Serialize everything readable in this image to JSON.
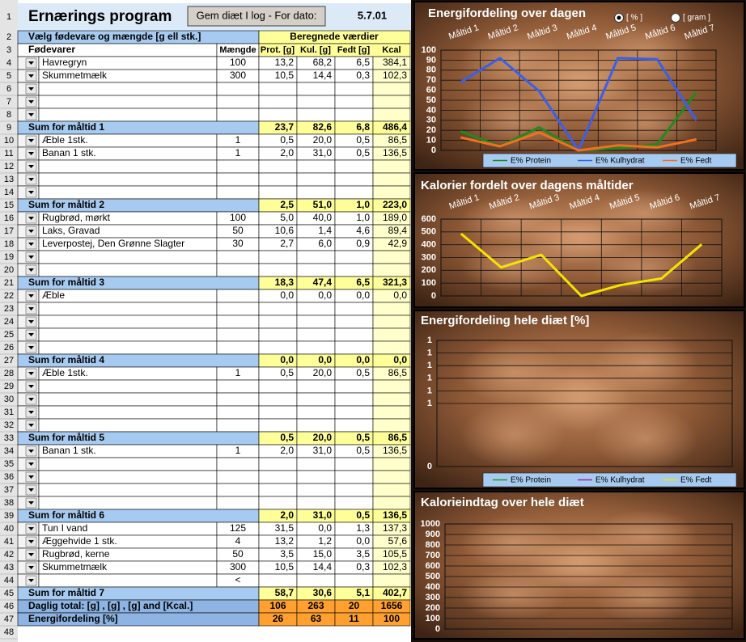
{
  "sheet": {
    "title": "Ernærings program",
    "button": "Gem diæt I log - For dato:",
    "date": "5.7.01",
    "header_rows": [
      1,
      2,
      3
    ],
    "section_left": "Vælg fødevare og mængde [g ell stk.]",
    "section_right": "Beregnede værdier",
    "columns": [
      "Fødevarer",
      "Mængde",
      "Prot. [g]",
      "Kul. [g]",
      "Fedt [g]",
      "Kcal"
    ],
    "rows": [
      {
        "n": 4,
        "kind": "food",
        "cells": [
          "Havregryn",
          "100",
          "13,2",
          "68,2",
          "6,5",
          "384,1"
        ]
      },
      {
        "n": 5,
        "kind": "food",
        "cells": [
          "Skummetmælk",
          "300",
          "10,5",
          "14,4",
          "0,3",
          "102,3"
        ]
      },
      {
        "n": 6,
        "kind": "food"
      },
      {
        "n": 7,
        "kind": "food"
      },
      {
        "n": 8,
        "kind": "food"
      },
      {
        "n": 9,
        "kind": "sum",
        "cells": [
          "Sum for måltid 1",
          null,
          "23,7",
          "82,6",
          "6,8",
          "486,4"
        ]
      },
      {
        "n": 10,
        "kind": "food",
        "cells": [
          "Æble 1stk.",
          "1",
          "0,5",
          "20,0",
          "0,5",
          "86,5"
        ]
      },
      {
        "n": 11,
        "kind": "food",
        "cells": [
          "Banan 1 stk.",
          "1",
          "2,0",
          "31,0",
          "0,5",
          "136,5"
        ]
      },
      {
        "n": 12,
        "kind": "food"
      },
      {
        "n": 13,
        "kind": "food"
      },
      {
        "n": 14,
        "kind": "food"
      },
      {
        "n": 15,
        "kind": "sum",
        "cells": [
          "Sum for måltid 2",
          null,
          "2,5",
          "51,0",
          "1,0",
          "223,0"
        ]
      },
      {
        "n": 16,
        "kind": "food",
        "cells": [
          "Rugbrød, mørkt",
          "100",
          "5,0",
          "40,0",
          "1,0",
          "189,0"
        ]
      },
      {
        "n": 17,
        "kind": "food",
        "cells": [
          "Laks, Gravad",
          "50",
          "10,6",
          "1,4",
          "4,6",
          "89,4"
        ]
      },
      {
        "n": 18,
        "kind": "food",
        "cells": [
          "Leverpostej, Den Grønne Slagter",
          "30",
          "2,7",
          "6,0",
          "0,9",
          "42,9"
        ]
      },
      {
        "n": 19,
        "kind": "food"
      },
      {
        "n": 20,
        "kind": "food"
      },
      {
        "n": 21,
        "kind": "sum",
        "cells": [
          "Sum for måltid 3",
          null,
          "18,3",
          "47,4",
          "6,5",
          "321,3"
        ]
      },
      {
        "n": 22,
        "kind": "food",
        "cells": [
          "Æble",
          null,
          "0,0",
          "0,0",
          "0,0",
          "0,0"
        ]
      },
      {
        "n": 23,
        "kind": "food"
      },
      {
        "n": 24,
        "kind": "food"
      },
      {
        "n": 25,
        "kind": "food"
      },
      {
        "n": 26,
        "kind": "food"
      },
      {
        "n": 27,
        "kind": "sum",
        "cells": [
          "Sum for måltid 4",
          null,
          "0,0",
          "0,0",
          "0,0",
          "0,0"
        ]
      },
      {
        "n": 28,
        "kind": "food",
        "cells": [
          "Æble 1stk.",
          "1",
          "0,5",
          "20,0",
          "0,5",
          "86,5"
        ]
      },
      {
        "n": 29,
        "kind": "food"
      },
      {
        "n": 30,
        "kind": "food"
      },
      {
        "n": 31,
        "kind": "food"
      },
      {
        "n": 32,
        "kind": "food"
      },
      {
        "n": 33,
        "kind": "sum",
        "cells": [
          "Sum for måltid 5",
          null,
          "0,5",
          "20,0",
          "0,5",
          "86,5"
        ]
      },
      {
        "n": 34,
        "kind": "food",
        "cells": [
          "Banan 1 stk.",
          "1",
          "2,0",
          "31,0",
          "0,5",
          "136,5"
        ]
      },
      {
        "n": 35,
        "kind": "food"
      },
      {
        "n": 36,
        "kind": "food"
      },
      {
        "n": 37,
        "kind": "food"
      },
      {
        "n": 38,
        "kind": "food"
      },
      {
        "n": 39,
        "kind": "sum",
        "cells": [
          "Sum for måltid 6",
          null,
          "2,0",
          "31,0",
          "0,5",
          "136,5"
        ]
      },
      {
        "n": 40,
        "kind": "food",
        "cells": [
          "Tun I vand",
          "125",
          "31,5",
          "0,0",
          "1,3",
          "137,3"
        ]
      },
      {
        "n": 41,
        "kind": "food",
        "cells": [
          "Æggehvide 1 stk.",
          "4",
          "13,2",
          "1,2",
          "0,0",
          "57,6"
        ]
      },
      {
        "n": 42,
        "kind": "food",
        "cells": [
          "Rugbrød, kerne",
          "50",
          "3,5",
          "15,0",
          "3,5",
          "105,5"
        ]
      },
      {
        "n": 43,
        "kind": "food",
        "cells": [
          "Skummetmælk",
          "300",
          "10,5",
          "14,4",
          "0,3",
          "102,3"
        ]
      },
      {
        "n": 44,
        "kind": "food",
        "cells": [
          null,
          "<",
          null,
          null,
          null,
          null
        ]
      },
      {
        "n": 45,
        "kind": "sum",
        "cells": [
          "Sum for måltid 7",
          null,
          "58,7",
          "30,6",
          "5,1",
          "402,7"
        ]
      },
      {
        "n": 46,
        "kind": "total",
        "cells": [
          "Daglig total: [g] , [g] , [g] and [Kcal.]",
          null,
          "106",
          "263",
          "20",
          "1656"
        ]
      },
      {
        "n": 47,
        "kind": "total",
        "cells": [
          "Energifordeling  [%]",
          null,
          "26",
          "63",
          "11",
          "100"
        ]
      },
      {
        "n": 48,
        "kind": "blank"
      }
    ]
  },
  "chart_data": [
    {
      "type": "line",
      "title": "Energifordeling over dagen",
      "options": [
        "[ % ]",
        "[ gram ]"
      ],
      "selected": 0,
      "categories": [
        "Måltid 1",
        "Måltid 2",
        "Måltid 3",
        "Måltid 4",
        "Måltid 5",
        "Måltid 6",
        "Måltid 7"
      ],
      "series": [
        {
          "name": "E% Protein",
          "color": "#1f8a1f",
          "values": [
            19,
            4,
            23,
            0,
            2,
            6,
            58
          ]
        },
        {
          "name": "E% Kulhydrat",
          "color": "#3a5fe8",
          "values": [
            68,
            92,
            59,
            0,
            92,
            91,
            30
          ]
        },
        {
          "name": "E% Fedt",
          "color": "#f07020",
          "values": [
            13,
            4,
            18,
            0,
            5,
            3,
            11
          ]
        }
      ],
      "ylim": [
        0,
        100
      ],
      "yticks": [
        0,
        10,
        20,
        30,
        40,
        50,
        60,
        70,
        80,
        90,
        100
      ],
      "grid": true,
      "legend": "bottom"
    },
    {
      "type": "line",
      "title": "Kalorier fordelt over dagens måltider",
      "categories": [
        "Måltid 1",
        "Måltid 2",
        "Måltid 3",
        "Måltid 4",
        "Måltid 5",
        "Måltid 6",
        "Måltid 7"
      ],
      "series": [
        {
          "name": "Kcal",
          "color": "#f5e400",
          "values": [
            486.4,
            223,
            321.3,
            0,
            86.5,
            136.5,
            402.7
          ]
        }
      ],
      "ylim": [
        0,
        600
      ],
      "yticks": [
        0,
        100,
        200,
        300,
        400,
        500,
        600
      ],
      "grid": true
    },
    {
      "type": "line",
      "title": "Energifordeling hele diæt [%]",
      "series": [
        {
          "name": "E% Protein",
          "color": "#1f9a1f",
          "values": []
        },
        {
          "name": "E% Kulhydrat",
          "color": "#a020a0",
          "values": []
        },
        {
          "name": "E% Fedt",
          "color": "#f5e400",
          "values": []
        }
      ],
      "ylim": [
        0,
        1
      ],
      "yticks": [
        0,
        {
          "value": 0.5,
          "label": "1"
        },
        {
          "value": 0.6,
          "label": "1"
        },
        {
          "value": 0.7,
          "label": "1"
        },
        {
          "value": 0.8,
          "label": "1"
        },
        {
          "value": 0.9,
          "label": "1"
        },
        1
      ],
      "grid": true,
      "legend": "bottom"
    },
    {
      "type": "line",
      "title": "Kalorieindtag over hele diæt",
      "series": [],
      "ylim": [
        0,
        1000
      ],
      "yticks": [
        0,
        100,
        200,
        300,
        400,
        500,
        600,
        700,
        800,
        900,
        1000
      ],
      "grid": true
    }
  ]
}
